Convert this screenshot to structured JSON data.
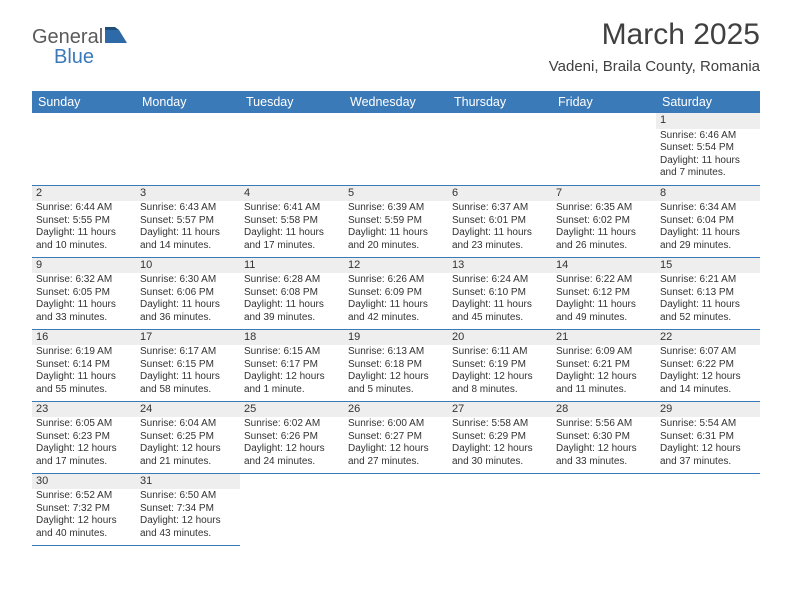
{
  "logo": {
    "part1": "General",
    "part2": "Blue"
  },
  "title": "March 2025",
  "location": "Vadeni, Braila County, Romania",
  "colors": {
    "header_bg": "#3b7ab8",
    "header_text": "#ffffff",
    "border": "#3b7ab8",
    "day_bg": "#eeeeee",
    "text": "#333333",
    "logo_gray": "#5a5a5a",
    "logo_blue": "#3b7ab8"
  },
  "day_headers": [
    "Sunday",
    "Monday",
    "Tuesday",
    "Wednesday",
    "Thursday",
    "Friday",
    "Saturday"
  ],
  "weeks": [
    [
      {
        "blank": true
      },
      {
        "blank": true
      },
      {
        "blank": true
      },
      {
        "blank": true
      },
      {
        "blank": true
      },
      {
        "blank": true
      },
      {
        "day": "1",
        "sunrise": "Sunrise: 6:46 AM",
        "sunset": "Sunset: 5:54 PM",
        "daylight1": "Daylight: 11 hours",
        "daylight2": "and 7 minutes."
      }
    ],
    [
      {
        "day": "2",
        "sunrise": "Sunrise: 6:44 AM",
        "sunset": "Sunset: 5:55 PM",
        "daylight1": "Daylight: 11 hours",
        "daylight2": "and 10 minutes."
      },
      {
        "day": "3",
        "sunrise": "Sunrise: 6:43 AM",
        "sunset": "Sunset: 5:57 PM",
        "daylight1": "Daylight: 11 hours",
        "daylight2": "and 14 minutes."
      },
      {
        "day": "4",
        "sunrise": "Sunrise: 6:41 AM",
        "sunset": "Sunset: 5:58 PM",
        "daylight1": "Daylight: 11 hours",
        "daylight2": "and 17 minutes."
      },
      {
        "day": "5",
        "sunrise": "Sunrise: 6:39 AM",
        "sunset": "Sunset: 5:59 PM",
        "daylight1": "Daylight: 11 hours",
        "daylight2": "and 20 minutes."
      },
      {
        "day": "6",
        "sunrise": "Sunrise: 6:37 AM",
        "sunset": "Sunset: 6:01 PM",
        "daylight1": "Daylight: 11 hours",
        "daylight2": "and 23 minutes."
      },
      {
        "day": "7",
        "sunrise": "Sunrise: 6:35 AM",
        "sunset": "Sunset: 6:02 PM",
        "daylight1": "Daylight: 11 hours",
        "daylight2": "and 26 minutes."
      },
      {
        "day": "8",
        "sunrise": "Sunrise: 6:34 AM",
        "sunset": "Sunset: 6:04 PM",
        "daylight1": "Daylight: 11 hours",
        "daylight2": "and 29 minutes."
      }
    ],
    [
      {
        "day": "9",
        "sunrise": "Sunrise: 6:32 AM",
        "sunset": "Sunset: 6:05 PM",
        "daylight1": "Daylight: 11 hours",
        "daylight2": "and 33 minutes."
      },
      {
        "day": "10",
        "sunrise": "Sunrise: 6:30 AM",
        "sunset": "Sunset: 6:06 PM",
        "daylight1": "Daylight: 11 hours",
        "daylight2": "and 36 minutes."
      },
      {
        "day": "11",
        "sunrise": "Sunrise: 6:28 AM",
        "sunset": "Sunset: 6:08 PM",
        "daylight1": "Daylight: 11 hours",
        "daylight2": "and 39 minutes."
      },
      {
        "day": "12",
        "sunrise": "Sunrise: 6:26 AM",
        "sunset": "Sunset: 6:09 PM",
        "daylight1": "Daylight: 11 hours",
        "daylight2": "and 42 minutes."
      },
      {
        "day": "13",
        "sunrise": "Sunrise: 6:24 AM",
        "sunset": "Sunset: 6:10 PM",
        "daylight1": "Daylight: 11 hours",
        "daylight2": "and 45 minutes."
      },
      {
        "day": "14",
        "sunrise": "Sunrise: 6:22 AM",
        "sunset": "Sunset: 6:12 PM",
        "daylight1": "Daylight: 11 hours",
        "daylight2": "and 49 minutes."
      },
      {
        "day": "15",
        "sunrise": "Sunrise: 6:21 AM",
        "sunset": "Sunset: 6:13 PM",
        "daylight1": "Daylight: 11 hours",
        "daylight2": "and 52 minutes."
      }
    ],
    [
      {
        "day": "16",
        "sunrise": "Sunrise: 6:19 AM",
        "sunset": "Sunset: 6:14 PM",
        "daylight1": "Daylight: 11 hours",
        "daylight2": "and 55 minutes."
      },
      {
        "day": "17",
        "sunrise": "Sunrise: 6:17 AM",
        "sunset": "Sunset: 6:15 PM",
        "daylight1": "Daylight: 11 hours",
        "daylight2": "and 58 minutes."
      },
      {
        "day": "18",
        "sunrise": "Sunrise: 6:15 AM",
        "sunset": "Sunset: 6:17 PM",
        "daylight1": "Daylight: 12 hours",
        "daylight2": "and 1 minute."
      },
      {
        "day": "19",
        "sunrise": "Sunrise: 6:13 AM",
        "sunset": "Sunset: 6:18 PM",
        "daylight1": "Daylight: 12 hours",
        "daylight2": "and 5 minutes."
      },
      {
        "day": "20",
        "sunrise": "Sunrise: 6:11 AM",
        "sunset": "Sunset: 6:19 PM",
        "daylight1": "Daylight: 12 hours",
        "daylight2": "and 8 minutes."
      },
      {
        "day": "21",
        "sunrise": "Sunrise: 6:09 AM",
        "sunset": "Sunset: 6:21 PM",
        "daylight1": "Daylight: 12 hours",
        "daylight2": "and 11 minutes."
      },
      {
        "day": "22",
        "sunrise": "Sunrise: 6:07 AM",
        "sunset": "Sunset: 6:22 PM",
        "daylight1": "Daylight: 12 hours",
        "daylight2": "and 14 minutes."
      }
    ],
    [
      {
        "day": "23",
        "sunrise": "Sunrise: 6:05 AM",
        "sunset": "Sunset: 6:23 PM",
        "daylight1": "Daylight: 12 hours",
        "daylight2": "and 17 minutes."
      },
      {
        "day": "24",
        "sunrise": "Sunrise: 6:04 AM",
        "sunset": "Sunset: 6:25 PM",
        "daylight1": "Daylight: 12 hours",
        "daylight2": "and 21 minutes."
      },
      {
        "day": "25",
        "sunrise": "Sunrise: 6:02 AM",
        "sunset": "Sunset: 6:26 PM",
        "daylight1": "Daylight: 12 hours",
        "daylight2": "and 24 minutes."
      },
      {
        "day": "26",
        "sunrise": "Sunrise: 6:00 AM",
        "sunset": "Sunset: 6:27 PM",
        "daylight1": "Daylight: 12 hours",
        "daylight2": "and 27 minutes."
      },
      {
        "day": "27",
        "sunrise": "Sunrise: 5:58 AM",
        "sunset": "Sunset: 6:29 PM",
        "daylight1": "Daylight: 12 hours",
        "daylight2": "and 30 minutes."
      },
      {
        "day": "28",
        "sunrise": "Sunrise: 5:56 AM",
        "sunset": "Sunset: 6:30 PM",
        "daylight1": "Daylight: 12 hours",
        "daylight2": "and 33 minutes."
      },
      {
        "day": "29",
        "sunrise": "Sunrise: 5:54 AM",
        "sunset": "Sunset: 6:31 PM",
        "daylight1": "Daylight: 12 hours",
        "daylight2": "and 37 minutes."
      }
    ],
    [
      {
        "day": "30",
        "sunrise": "Sunrise: 6:52 AM",
        "sunset": "Sunset: 7:32 PM",
        "daylight1": "Daylight: 12 hours",
        "daylight2": "and 40 minutes."
      },
      {
        "day": "31",
        "sunrise": "Sunrise: 6:50 AM",
        "sunset": "Sunset: 7:34 PM",
        "daylight1": "Daylight: 12 hours",
        "daylight2": "and 43 minutes."
      },
      {
        "blank": true
      },
      {
        "blank": true
      },
      {
        "blank": true
      },
      {
        "blank": true
      },
      {
        "blank": true
      }
    ]
  ]
}
